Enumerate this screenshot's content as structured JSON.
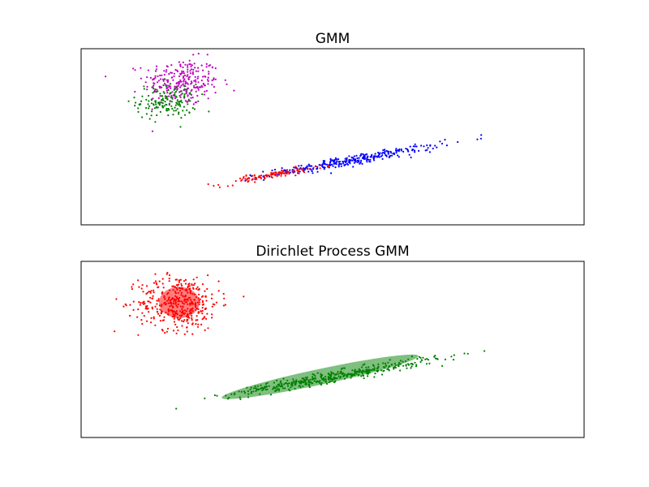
{
  "chart_data": [
    {
      "type": "scatter",
      "title": "GMM",
      "xlabel": "",
      "ylabel": "",
      "xlim": [
        -10,
        10
      ],
      "ylim": [
        -3,
        6
      ],
      "ticks": "none",
      "grid": false,
      "clusters": [
        {
          "color": "#bf00bf",
          "n": 260,
          "center": [
            -6.0,
            4.3
          ],
          "spread": [
            0.75,
            0.6
          ],
          "rho": 0.0
        },
        {
          "color": "#008000",
          "n": 160,
          "center": [
            -6.6,
            3.3
          ],
          "spread": [
            0.6,
            0.45
          ],
          "rho": 0.0
        },
        {
          "color": "#0000ff",
          "n": 320,
          "center": [
            0.8,
            0.3
          ],
          "spread": [
            1.7,
            0.35
          ],
          "slope": 0.22
        },
        {
          "color": "#ff0000",
          "n": 110,
          "center": [
            -2.4,
            -0.45
          ],
          "spread": [
            1.0,
            0.25
          ],
          "slope": 0.22
        }
      ],
      "ellipses": []
    },
    {
      "type": "scatter",
      "title": "Dirichlet Process GMM",
      "xlabel": "",
      "ylabel": "",
      "xlim": [
        -10,
        10
      ],
      "ylim": [
        -3,
        6
      ],
      "ticks": "none",
      "grid": false,
      "clusters": [
        {
          "color": "#ff0000",
          "n": 420,
          "center": [
            -6.1,
            3.9
          ],
          "spread": [
            0.8,
            0.7
          ],
          "rho": 0.0
        },
        {
          "color": "#008000",
          "n": 430,
          "center": [
            0.0,
            0.1
          ],
          "spread": [
            2.1,
            0.4
          ],
          "slope": 0.22
        }
      ],
      "ellipses": [
        {
          "color": "#ff0000",
          "center": [
            -6.1,
            3.9
          ],
          "width": 1.6,
          "height": 1.6,
          "angle": 0,
          "alpha": 0.5
        },
        {
          "color": "#008000",
          "center": [
            -0.5,
            0.1
          ],
          "width": 8.0,
          "height": 0.8,
          "angle": 12,
          "alpha": 0.5
        }
      ]
    }
  ]
}
